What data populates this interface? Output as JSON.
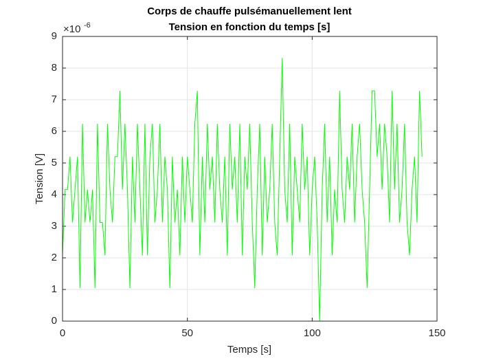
{
  "chart_data": {
    "type": "line",
    "title": "Corps de chauffe pulsémanuellement lent",
    "subtitle": "Tension en fonction du temps [s]",
    "x_label": "Temps [s]",
    "y_label": "Tension [V]",
    "y_multiplier_base": "×10",
    "y_multiplier_exponent": "-6",
    "color": "#00ff00",
    "grid": true,
    "xlim": [
      0,
      150
    ],
    "xticks": [
      0,
      50,
      100,
      150
    ],
    "ylim": [
      0,
      9
    ],
    "yticks": [
      0,
      1,
      2,
      3,
      4,
      5,
      6,
      7,
      8,
      9
    ],
    "x": [
      0,
      1,
      2,
      3,
      4,
      5,
      6,
      7,
      8,
      9,
      10,
      11,
      12,
      13,
      14,
      15,
      16,
      17,
      18,
      19,
      20,
      21,
      22,
      23,
      24,
      25,
      26,
      27,
      28,
      29,
      30,
      31,
      32,
      33,
      34,
      35,
      36,
      37,
      38,
      39,
      40,
      41,
      42,
      43,
      44,
      45,
      46,
      47,
      48,
      49,
      50,
      51,
      52,
      53,
      54,
      55,
      56,
      57,
      58,
      59,
      60,
      61,
      62,
      63,
      64,
      65,
      66,
      67,
      68,
      69,
      70,
      71,
      72,
      73,
      74,
      75,
      76,
      77,
      78,
      79,
      80,
      81,
      82,
      83,
      84,
      85,
      86,
      87,
      88,
      89,
      90,
      91,
      92,
      93,
      94,
      95,
      96,
      97,
      98,
      99,
      100,
      101,
      102,
      103,
      104,
      105,
      106,
      107,
      108,
      109,
      110,
      111,
      112,
      113,
      114,
      115,
      116,
      117,
      118,
      119,
      120,
      121,
      122,
      123,
      124,
      125,
      126,
      127,
      128,
      129,
      130,
      131,
      132,
      133,
      134,
      135,
      136,
      137,
      138,
      139,
      140,
      141,
      142,
      143,
      144
    ],
    "values": [
      2.08,
      4.16,
      4.16,
      5.2,
      3.12,
      4.16,
      5.2,
      1.04,
      6.24,
      3.12,
      4.16,
      3.12,
      4.16,
      1.04,
      6.24,
      3.12,
      3.12,
      2.08,
      6.24,
      4.16,
      3.12,
      5.2,
      5.2,
      7.28,
      4.16,
      6.24,
      4.16,
      1.04,
      5.2,
      3.12,
      6.24,
      4.16,
      2.08,
      6.24,
      2.08,
      5.2,
      6.24,
      3.12,
      4.16,
      6.24,
      3.12,
      5.2,
      4.16,
      1.04,
      5.2,
      3.12,
      4.16,
      2.08,
      5.2,
      3.12,
      5.2,
      4.16,
      3.12,
      6.24,
      7.28,
      2.08,
      5.2,
      3.12,
      6.24,
      4.16,
      5.2,
      3.12,
      6.24,
      4.16,
      3.12,
      5.2,
      2.08,
      6.24,
      4.16,
      5.2,
      3.12,
      6.24,
      2.08,
      5.2,
      4.16,
      6.24,
      3.12,
      1.04,
      4.16,
      6.24,
      2.08,
      5.2,
      3.12,
      4.16,
      6.24,
      3.12,
      2.08,
      5.2,
      8.32,
      4.16,
      3.12,
      6.24,
      2.08,
      5.2,
      4.16,
      3.12,
      6.24,
      4.16,
      5.2,
      2.08,
      4.16,
      5.2,
      3.12,
      0,
      4.16,
      6.24,
      3.12,
      5.2,
      2.08,
      4.16,
      3.12,
      7.28,
      4.16,
      3.12,
      5.2,
      4.16,
      6.24,
      3.12,
      5.2,
      6.24,
      4.16,
      3.12,
      1.04,
      4.16,
      7.28,
      7.28,
      5.2,
      6.24,
      4.16,
      6.24,
      5.2,
      3.12,
      7.28,
      4.16,
      6.24,
      3.12,
      4.16,
      6.24,
      3.12,
      2.08,
      4.16,
      5.2,
      3.12,
      7.28,
      5.2
    ]
  }
}
